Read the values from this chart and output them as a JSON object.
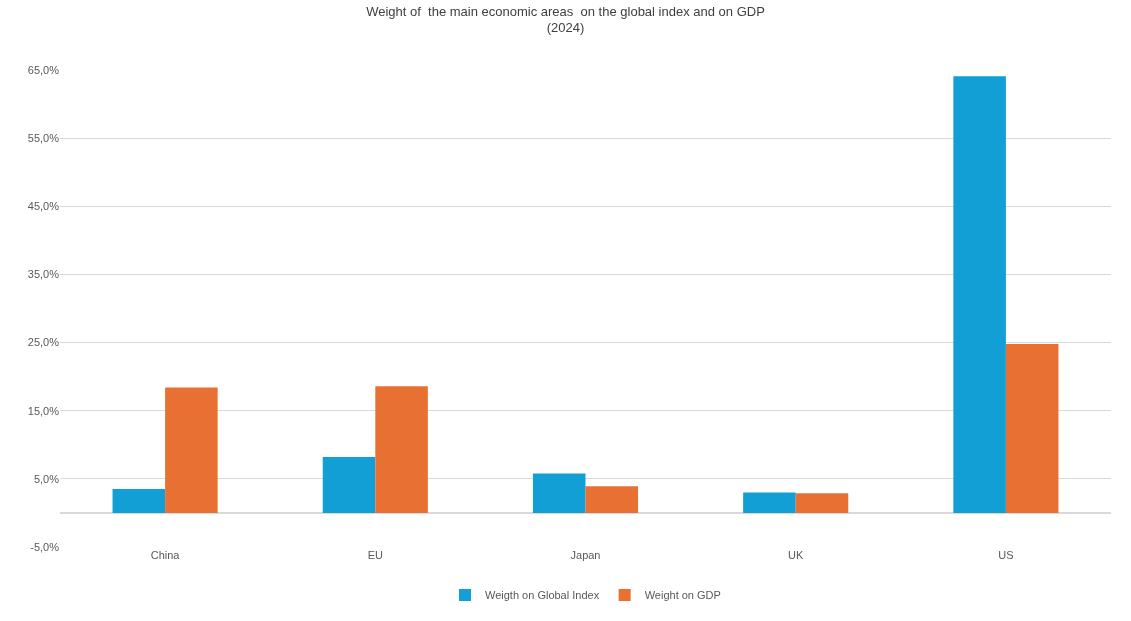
{
  "chart_data": {
    "type": "bar",
    "title": "Weight of  the main economic areas  on the global index and on GDP\n(2024)",
    "categories": [
      "China",
      "EU",
      "Japan",
      "UK",
      "US"
    ],
    "series": [
      {
        "name": "Weigth on Global Index",
        "color": "#119fd6",
        "values": [
          3.5,
          8.2,
          5.8,
          3.0,
          64.1
        ]
      },
      {
        "name": "Weight on GDP",
        "color": "#e87033",
        "values": [
          18.4,
          18.6,
          3.9,
          2.9,
          24.8
        ]
      }
    ],
    "ylim": [
      -5,
      65
    ],
    "yticks": [
      {
        "value": -5,
        "label": "-5,0%"
      },
      {
        "value": 5,
        "label": "5,0%"
      },
      {
        "value": 15,
        "label": "15,0%"
      },
      {
        "value": 25,
        "label": "25,0%"
      },
      {
        "value": 35,
        "label": "35,0%"
      },
      {
        "value": 45,
        "label": "45,0%"
      },
      {
        "value": 55,
        "label": "55,0%"
      },
      {
        "value": 65,
        "label": "65,0%"
      }
    ],
    "grid": "y",
    "legend": "bottom"
  }
}
